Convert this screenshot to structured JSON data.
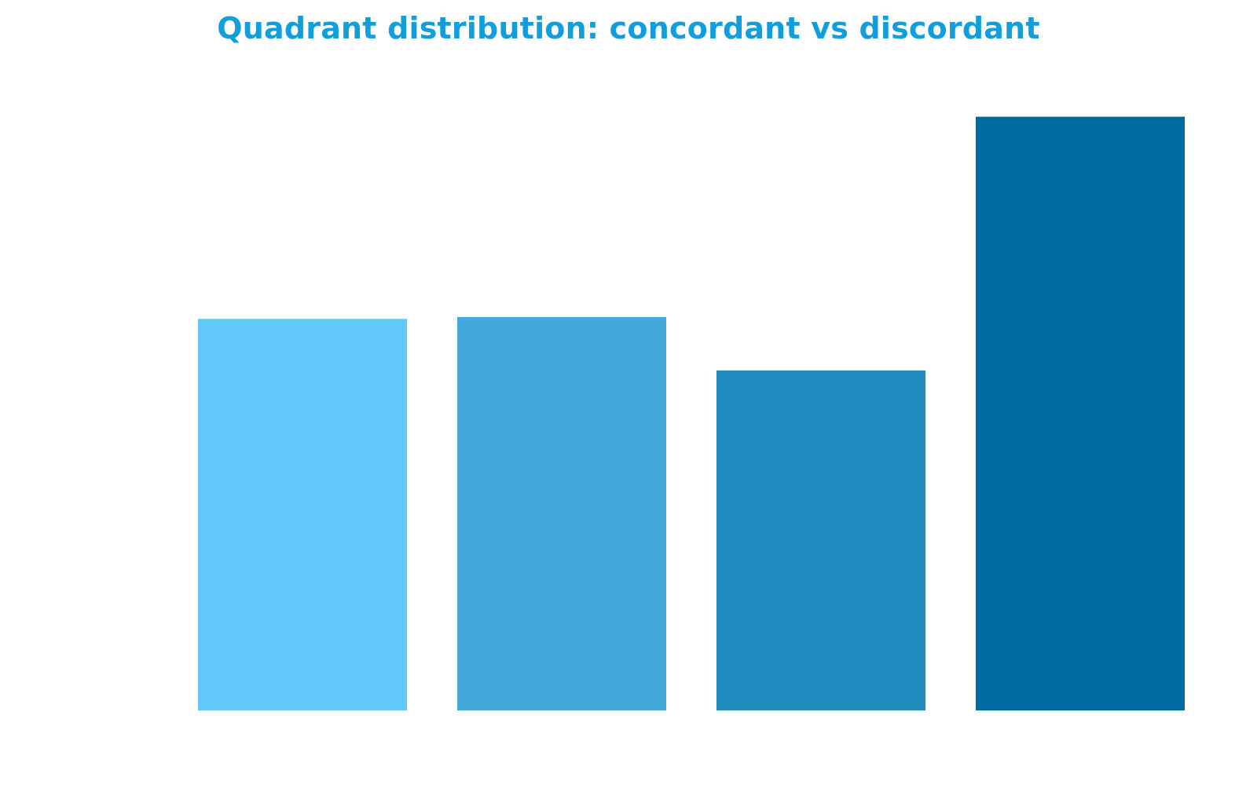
{
  "chart_data": {
    "type": "bar",
    "title": "Quadrant distribution: concordant vs discordant",
    "xlabel": "",
    "ylabel": "",
    "grid": false,
    "legend": "none",
    "ylim": [
      0,
      100
    ],
    "categories": [
      "",
      "",
      "",
      ""
    ],
    "values": [
      62.2,
      62.5,
      54.0,
      94.3
    ],
    "colors": [
      "#60c9f8",
      "#41a9dc",
      "#228cc1",
      "#006ba1"
    ]
  },
  "colors": {
    "title": "#109fdc",
    "background": "#ffffff"
  }
}
